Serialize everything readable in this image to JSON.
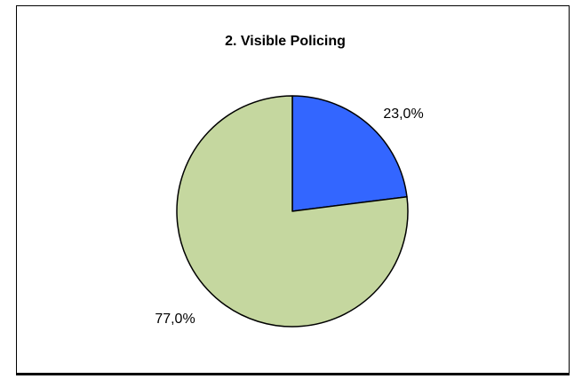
{
  "chart_data": {
    "type": "pie",
    "title": "2. Visible Policing",
    "slices": [
      {
        "value": 23.0,
        "label": "23,0%",
        "color": "#3366ff"
      },
      {
        "value": 77.0,
        "label": "77,0%",
        "color": "#c5d79f"
      }
    ],
    "start_angle_deg": 0,
    "direction": "clockwise",
    "legend": "none"
  }
}
